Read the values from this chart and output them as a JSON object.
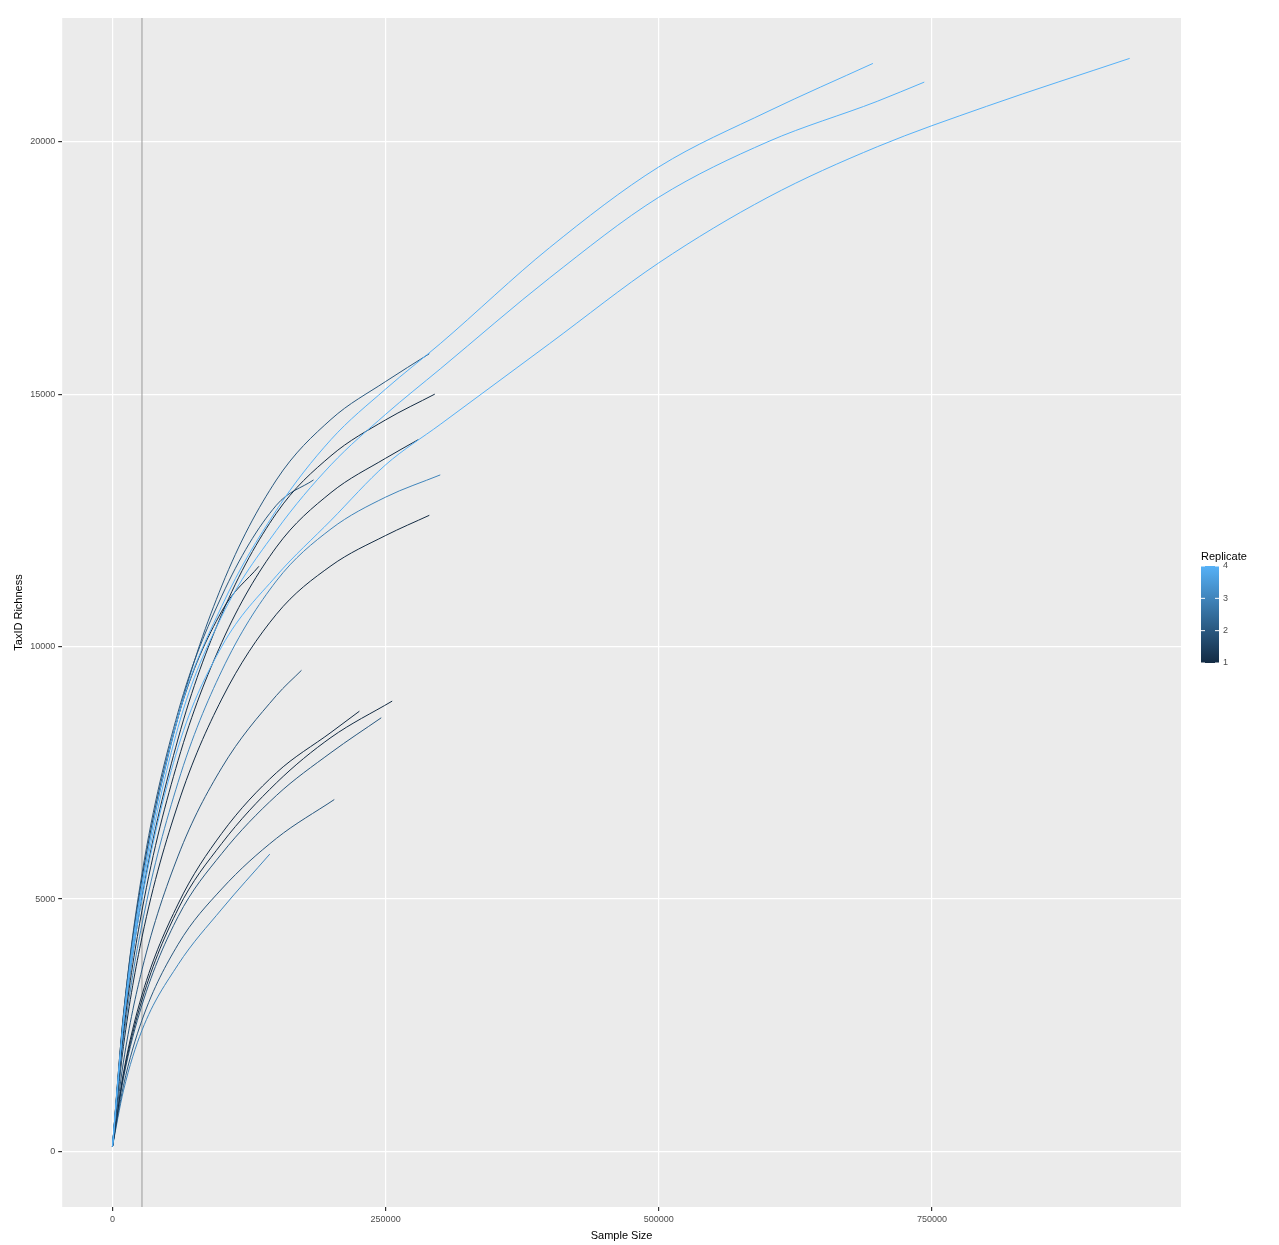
{
  "chart_data": {
    "type": "line",
    "xlabel": "Sample Size",
    "ylabel": "TaxID Richness",
    "clabel": "Replicate",
    "clim": [
      1,
      4
    ],
    "cticks": [
      1,
      2,
      3,
      4
    ],
    "xlim": [
      -46000,
      978000
    ],
    "xticks": [
      0,
      250000,
      500000,
      750000
    ],
    "ylim": [
      -1100,
      22450
    ],
    "yticks": [
      0,
      5000,
      10000,
      15000,
      20000
    ],
    "grid": true,
    "ref_lines": [
      {
        "axis": "x",
        "value": 27000,
        "color": "#999999"
      }
    ],
    "series": [
      {
        "color": "#56b1f7",
        "x": [
          0,
          10000,
          27000,
          60000,
          100000,
          150000,
          200000,
          250000,
          300000,
          400000,
          500000,
          600000,
          696000
        ],
        "values": [
          100,
          2600,
          5300,
          8600,
          10800,
          12700,
          14100,
          15100,
          16000,
          17900,
          19500,
          20600,
          21550
        ]
      },
      {
        "color": "#56b1f7",
        "x": [
          0,
          10000,
          27000,
          60000,
          100000,
          150000,
          200000,
          250000,
          300000,
          400000,
          500000,
          600000,
          700000,
          743000
        ],
        "values": [
          100,
          2550,
          5150,
          8400,
          10600,
          12300,
          13600,
          14600,
          15500,
          17300,
          18900,
          20000,
          20800,
          21180
        ]
      },
      {
        "color": "#56b1f7",
        "x": [
          0,
          10000,
          27000,
          60000,
          100000,
          150000,
          200000,
          250000,
          300000,
          400000,
          500000,
          600000,
          700000,
          800000,
          931000
        ],
        "values": [
          100,
          2500,
          5000,
          8000,
          10000,
          11400,
          12500,
          13600,
          14400,
          16000,
          17600,
          18900,
          19900,
          20700,
          21650
        ]
      },
      {
        "color": "#29587f",
        "x": [
          0,
          10000,
          27000,
          60000,
          100000,
          150000,
          200000,
          250000,
          290000
        ],
        "values": [
          100,
          2600,
          5300,
          8600,
          11200,
          13300,
          14500,
          15250,
          15800
        ]
      },
      {
        "color": "#132b43",
        "x": [
          0,
          10000,
          27000,
          60000,
          100000,
          150000,
          200000,
          250000,
          295000
        ],
        "values": [
          100,
          2470,
          5040,
          8170,
          10640,
          12640,
          13780,
          14490,
          15000
        ]
      },
      {
        "color": "#132b43",
        "x": [
          0,
          10000,
          27000,
          60000,
          100000,
          150000,
          200000,
          250000,
          280000
        ],
        "values": [
          100,
          2340,
          4770,
          7740,
          10080,
          11970,
          13050,
          13730,
          14100
        ]
      },
      {
        "color": "#4085bb",
        "x": [
          0,
          10000,
          27000,
          60000,
          100000,
          150000,
          200000,
          250000,
          300000
        ],
        "values": [
          100,
          2210,
          4500,
          7310,
          9520,
          11300,
          12330,
          12960,
          13400
        ]
      },
      {
        "color": "#132b43",
        "x": [
          0,
          10000,
          27000,
          60000,
          100000,
          150000,
          200000,
          250000,
          290000
        ],
        "values": [
          100,
          2080,
          4240,
          6880,
          8960,
          10640,
          11600,
          12200,
          12600
        ]
      },
      {
        "color": "#29587f",
        "x": [
          0,
          10000,
          27000,
          60000,
          100000,
          150000,
          184000
        ],
        "values": [
          100,
          2700,
          5500,
          8700,
          11000,
          12800,
          13300
        ]
      },
      {
        "color": "#132b43",
        "x": [
          0,
          10000,
          27000,
          60000,
          100000,
          134000
        ],
        "values": [
          100,
          2700,
          5400,
          8600,
          10700,
          11590
        ]
      },
      {
        "color": "#29587f",
        "x": [
          0,
          10000,
          27000,
          60000,
          100000,
          150000,
          173000
        ],
        "values": [
          100,
          1770,
          3600,
          5850,
          7600,
          9030,
          9530
        ]
      },
      {
        "color": "#132b43",
        "x": [
          0,
          10000,
          27000,
          60000,
          100000,
          150000,
          200000,
          256000
        ],
        "values": [
          100,
          1500,
          3000,
          4800,
          6100,
          7300,
          8200,
          8920
        ]
      },
      {
        "color": "#29587f",
        "x": [
          0,
          10000,
          27000,
          60000,
          100000,
          150000,
          200000,
          246000
        ],
        "values": [
          100,
          1450,
          2900,
          4650,
          5900,
          7050,
          7900,
          8590
        ]
      },
      {
        "color": "#132b43",
        "x": [
          0,
          10000,
          27000,
          60000,
          100000,
          150000,
          200000,
          226000
        ],
        "values": [
          100,
          1550,
          3100,
          4900,
          6300,
          7500,
          8300,
          8720
        ]
      },
      {
        "color": "#29587f",
        "x": [
          0,
          10000,
          27000,
          60000,
          100000,
          150000,
          203000
        ],
        "values": [
          100,
          1300,
          2600,
          4100,
          5200,
          6200,
          6970
        ]
      },
      {
        "color": "#4085bb",
        "x": [
          0,
          10000,
          27000,
          60000,
          100000,
          144000
        ],
        "values": [
          100,
          1200,
          2400,
          3700,
          4800,
          5890
        ]
      }
    ]
  }
}
